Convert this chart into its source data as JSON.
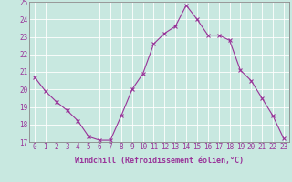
{
  "x": [
    0,
    1,
    2,
    3,
    4,
    5,
    6,
    7,
    8,
    9,
    10,
    11,
    12,
    13,
    14,
    15,
    16,
    17,
    18,
    19,
    20,
    21,
    22,
    23
  ],
  "y": [
    20.7,
    19.9,
    19.3,
    18.8,
    18.2,
    17.3,
    17.1,
    17.1,
    18.5,
    20.0,
    20.9,
    22.6,
    23.2,
    23.6,
    24.8,
    24.0,
    23.1,
    23.1,
    22.8,
    21.1,
    20.5,
    19.5,
    18.5,
    17.2
  ],
  "line_color": "#993399",
  "marker": "x",
  "bg_color": "#c8e8e0",
  "grid_color": "#b0d8d0",
  "xlabel": "Windchill (Refroidissement éolien,°C)",
  "xlabel_fontsize": 6.0,
  "tick_label_color": "#993399",
  "ylim": [
    17,
    25
  ],
  "xlim": [
    -0.5,
    23.5
  ],
  "yticks": [
    17,
    18,
    19,
    20,
    21,
    22,
    23,
    24,
    25
  ],
  "xticks": [
    0,
    1,
    2,
    3,
    4,
    5,
    6,
    7,
    8,
    9,
    10,
    11,
    12,
    13,
    14,
    15,
    16,
    17,
    18,
    19,
    20,
    21,
    22,
    23
  ],
  "tick_fontsize": 5.5,
  "spine_color": "#888888"
}
